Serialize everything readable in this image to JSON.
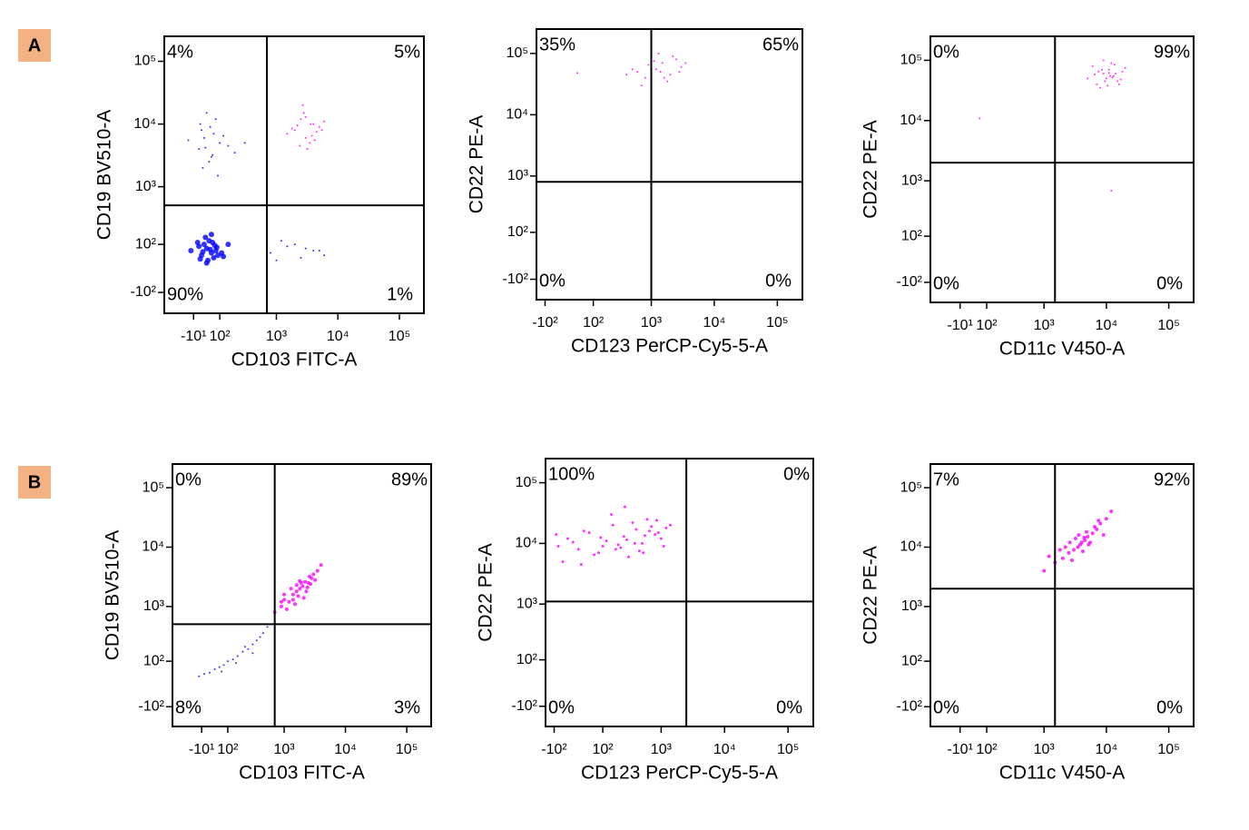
{
  "panel_labels": [
    "A",
    "B"
  ],
  "chart_data": [
    {
      "type": "scatter",
      "scale": "biexponential",
      "x_label": "CD103 FITC-A",
      "y_label": "CD19 BV510-A",
      "xlim": [
        -150,
        250000
      ],
      "ylim": [
        -250,
        250000
      ],
      "xticks": [
        {
          "value": -10,
          "label": "-10¹"
        },
        {
          "value": 100,
          "label": "10²"
        },
        {
          "value": 1000,
          "label": "10³"
        },
        {
          "value": 10000,
          "label": "10⁴"
        },
        {
          "value": 100000,
          "label": "10⁵"
        }
      ],
      "yticks": [
        {
          "value": -100,
          "label": "-10²"
        },
        {
          "value": 100,
          "label": "10²"
        },
        {
          "value": 1000,
          "label": "10³"
        },
        {
          "value": 10000,
          "label": "10⁴"
        },
        {
          "value": 100000,
          "label": "10⁵"
        }
      ],
      "gate": {
        "x": 700,
        "y": 500
      },
      "quadrant_labels": [
        "4%",
        "5%",
        "90%",
        "1%"
      ],
      "series": [
        {
          "color": "#0000ff",
          "size": 6,
          "x": [
            20,
            40,
            60,
            80,
            30,
            50,
            70,
            10,
            90,
            45,
            65,
            25,
            55,
            35,
            75,
            110,
            15,
            85,
            40,
            60,
            150,
            -20,
            5,
            120
          ],
          "values": [
            50,
            80,
            60,
            70,
            100,
            120,
            40,
            90,
            50,
            30,
            110,
            65,
            75,
            140,
            95,
            60,
            35,
            85,
            20,
            160,
            100,
            70,
            110,
            45
          ]
        },
        {
          "color": "#0000ff",
          "size": 2,
          "x": [
            10,
            30,
            60,
            100,
            20,
            50,
            150,
            80,
            -30,
            40,
            200,
            70,
            25,
            120,
            55,
            90,
            35,
            300,
            15,
            65
          ],
          "values": [
            4000,
            6000,
            3000,
            5000,
            8000,
            2500,
            4500,
            12000,
            5500,
            15000,
            3500,
            7000,
            2000,
            6500,
            9000,
            1500,
            4200,
            5000,
            10000,
            3200
          ]
        },
        {
          "color": "#0000ff",
          "size": 2,
          "x": [
            800,
            1500,
            2500,
            4000,
            1200,
            3000,
            6000,
            2000,
            1000,
            5000
          ],
          "values": [
            60,
            90,
            40,
            70,
            120,
            80,
            50,
            100,
            30,
            70
          ]
        },
        {
          "color": "#ff00ff",
          "size": 2,
          "x": [
            2000,
            3000,
            4000,
            2500,
            3500,
            5000,
            1500,
            2800,
            4500,
            3200,
            6000,
            2200,
            3800,
            2700,
            1800,
            4200,
            3000,
            5500,
            2400,
            3600
          ],
          "values": [
            8000,
            6000,
            10000,
            12000,
            5000,
            9000,
            7000,
            15000,
            7500,
            4000,
            11000,
            9500,
            6500,
            20000,
            8500,
            5500,
            13000,
            8000,
            4500,
            10000
          ]
        }
      ]
    },
    {
      "type": "scatter",
      "scale": "biexponential",
      "x_label": "CD123 PerCP-Cy5-5-A",
      "y_label": "CD22 PE-A",
      "xlim": [
        -150,
        250000
      ],
      "ylim": [
        -250,
        250000
      ],
      "xticks": [
        {
          "value": -100,
          "label": "-10²"
        },
        {
          "value": 100,
          "label": "10²"
        },
        {
          "value": 1000,
          "label": "10³"
        },
        {
          "value": 10000,
          "label": "10⁴"
        },
        {
          "value": 100000,
          "label": "10⁵"
        }
      ],
      "yticks": [
        {
          "value": -100,
          "label": "-10²"
        },
        {
          "value": 100,
          "label": "10²"
        },
        {
          "value": 1000,
          "label": "10³"
        },
        {
          "value": 10000,
          "label": "10⁴"
        },
        {
          "value": 100000,
          "label": "10⁵"
        }
      ],
      "gate": {
        "x": 1000,
        "y": 800
      },
      "quadrant_labels": [
        "35%",
        "65%",
        "0%",
        "0%"
      ],
      "series": [
        {
          "color": "#ff00ff",
          "size": 2,
          "x": [
            600,
            1000,
            1500,
            2000,
            800,
            1200,
            2500,
            3000,
            1800,
            900,
            1400,
            700,
            2200,
            400,
            1100,
            1600,
            2800,
            500,
            1300,
            3500,
            30
          ],
          "values": [
            50000,
            60000,
            70000,
            45000,
            40000,
            55000,
            80000,
            60000,
            35000,
            65000,
            50000,
            30000,
            90000,
            45000,
            75000,
            40000,
            50000,
            55000,
            100000,
            70000,
            48000
          ]
        }
      ]
    },
    {
      "type": "scatter",
      "scale": "biexponential",
      "x_label": "CD11c V450-A",
      "y_label": "CD22 PE-A",
      "xlim": [
        -150,
        250000
      ],
      "ylim": [
        -250,
        250000
      ],
      "xticks": [
        {
          "value": -10,
          "label": "-10¹"
        },
        {
          "value": 100,
          "label": "10²"
        },
        {
          "value": 1000,
          "label": "10³"
        },
        {
          "value": 10000,
          "label": "10⁴"
        },
        {
          "value": 100000,
          "label": "10⁵"
        }
      ],
      "yticks": [
        {
          "value": -100,
          "label": "-10²"
        },
        {
          "value": 100,
          "label": "10²"
        },
        {
          "value": 1000,
          "label": "10³"
        },
        {
          "value": 10000,
          "label": "10⁴"
        },
        {
          "value": 100000,
          "label": "10⁵"
        }
      ],
      "gate": {
        "x": 1500,
        "y": 2000
      },
      "quadrant_labels": [
        "0%",
        "99%",
        "0%",
        "0%"
      ],
      "series": [
        {
          "color": "#ff00ff",
          "size": 2,
          "x": [
            5000,
            7000,
            9000,
            11000,
            13000,
            15000,
            18000,
            6000,
            8000,
            10000,
            12000,
            14000,
            16000,
            20000,
            7500,
            9500,
            11500,
            13500,
            8500,
            10500,
            12500,
            6500,
            17000,
            9000,
            11000,
            66,
            12000
          ],
          "values": [
            50000,
            40000,
            60000,
            70000,
            55000,
            45000,
            65000,
            80000,
            35000,
            50000,
            90000,
            60000,
            40000,
            75000,
            65000,
            45000,
            55000,
            85000,
            70000,
            38000,
            52000,
            58000,
            48000,
            100000,
            62000,
            10900,
            680
          ]
        }
      ]
    },
    {
      "type": "scatter",
      "scale": "biexponential",
      "x_label": "CD103 FITC-A",
      "y_label": "CD19 BV510-A",
      "xlim": [
        -150,
        250000
      ],
      "ylim": [
        -250,
        250000
      ],
      "xticks": [
        {
          "value": -10,
          "label": "-10¹"
        },
        {
          "value": 100,
          "label": "10²"
        },
        {
          "value": 1000,
          "label": "10³"
        },
        {
          "value": 10000,
          "label": "10⁴"
        },
        {
          "value": 100000,
          "label": "10⁵"
        }
      ],
      "yticks": [
        {
          "value": -100,
          "label": "-10²"
        },
        {
          "value": 100,
          "label": "10²"
        },
        {
          "value": 1000,
          "label": "10³"
        },
        {
          "value": 10000,
          "label": "10⁴"
        },
        {
          "value": 100000,
          "label": "10⁵"
        }
      ],
      "gate": {
        "x": 700,
        "y": 500
      },
      "quadrant_labels": [
        "0%",
        "89%",
        "8%",
        "3%"
      ],
      "series": [
        {
          "color": "#0000ff",
          "size": 2,
          "x": [
            -20,
            0,
            20,
            40,
            60,
            80,
            100,
            130,
            160,
            200,
            250,
            300,
            350,
            400,
            450,
            530,
            70,
            150,
            220,
            300
          ],
          "values": [
            30,
            40,
            45,
            60,
            70,
            80,
            100,
            110,
            130,
            160,
            180,
            220,
            260,
            300,
            350,
            450,
            50,
            90,
            200,
            150
          ]
        },
        {
          "color": "#ff00ff",
          "size": 4,
          "x": [
            700,
            900,
            1000,
            1200,
            1400,
            1600,
            1800,
            2000,
            2200,
            2500,
            2800,
            3000,
            3500,
            4000,
            1100,
            1300,
            1700,
            1900,
            2300,
            2600,
            1500,
            2100,
            900,
            3200,
            1600,
            2400,
            1000,
            2700,
            1800,
            1400
          ],
          "values": [
            800,
            1000,
            1300,
            1200,
            1600,
            1800,
            2000,
            2200,
            2600,
            2500,
            3000,
            3500,
            4000,
            5000,
            900,
            2000,
            1500,
            2500,
            1800,
            3200,
            1100,
            1400,
            1200,
            2800,
            2300,
            2100,
            1600,
            2400,
            2700,
            1300
          ]
        }
      ]
    },
    {
      "type": "scatter",
      "scale": "biexponential",
      "x_label": "CD123  PerCP-Cy5-5-A",
      "y_label": "CD22 PE-A",
      "xlim": [
        -150,
        250000
      ],
      "ylim": [
        -250,
        250000
      ],
      "xticks": [
        {
          "value": -100,
          "label": "-10²"
        },
        {
          "value": 100,
          "label": "10²"
        },
        {
          "value": 1000,
          "label": "10³"
        },
        {
          "value": 10000,
          "label": "10⁴"
        },
        {
          "value": 100000,
          "label": "10⁵"
        }
      ],
      "yticks": [
        {
          "value": -100,
          "label": "-10²"
        },
        {
          "value": 100,
          "label": "10²"
        },
        {
          "value": 1000,
          "label": "10³"
        },
        {
          "value": 10000,
          "label": "10⁴"
        },
        {
          "value": 100000,
          "label": "10⁵"
        }
      ],
      "gate": {
        "x": 2500,
        "y": 1100
      },
      "quadrant_labels": [
        "100%",
        "0%",
        "0%",
        "0%"
      ],
      "series": [
        {
          "color": "#ff00ff",
          "size": 3,
          "x": [
            -80,
            -40,
            0,
            40,
            80,
            120,
            160,
            200,
            250,
            300,
            400,
            500,
            600,
            800,
            1000,
            1200,
            -60,
            -20,
            20,
            60,
            100,
            150,
            220,
            280,
            350,
            450,
            550,
            700,
            900,
            1100,
            -90,
            10,
            90,
            180,
            260,
            380,
            520,
            650,
            850,
            1400
          ],
          "values": [
            9000,
            12000,
            8000,
            15000,
            7000,
            11000,
            20000,
            9500,
            13000,
            6000,
            17000,
            10000,
            25000,
            14000,
            12000,
            18000,
            5000,
            10500,
            16000,
            6500,
            9000,
            30000,
            8500,
            11500,
            22000,
            7500,
            13500,
            19000,
            15000,
            9000,
            14000,
            4500,
            12500,
            8000,
            40000,
            10000,
            7000,
            16000,
            24000,
            20000
          ]
        }
      ]
    },
    {
      "type": "scatter",
      "scale": "biexponential",
      "x_label": "CD11c V450-A",
      "y_label": "CD22 PE-A",
      "xlim": [
        -150,
        250000
      ],
      "ylim": [
        -250,
        250000
      ],
      "xticks": [
        {
          "value": -10,
          "label": "-10¹"
        },
        {
          "value": 100,
          "label": "10²"
        },
        {
          "value": 1000,
          "label": "10³"
        },
        {
          "value": 10000,
          "label": "10⁴"
        },
        {
          "value": 100000,
          "label": "10⁵"
        }
      ],
      "yticks": [
        {
          "value": -100,
          "label": "-10²"
        },
        {
          "value": 100,
          "label": "10²"
        },
        {
          "value": 1000,
          "label": "10³"
        },
        {
          "value": 10000,
          "label": "10⁴"
        },
        {
          "value": 100000,
          "label": "10⁵"
        }
      ],
      "gate": {
        "x": 1500,
        "y": 2000
      },
      "quadrant_labels": [
        "7%",
        "92%",
        "0%",
        "0%"
      ],
      "series": [
        {
          "color": "#ff00ff",
          "size": 4,
          "x": [
            1000,
            1500,
            2000,
            2500,
            3000,
            3500,
            4000,
            4500,
            5000,
            6000,
            7000,
            8000,
            10000,
            12000,
            1800,
            2800,
            3200,
            3800,
            4200,
            5500,
            6500,
            2200,
            4800,
            9000,
            1200,
            3600,
            5200,
            7500,
            2600,
            4400
          ],
          "values": [
            4000,
            5500,
            6500,
            8000,
            9000,
            10000,
            12000,
            13000,
            15000,
            17000,
            20000,
            25000,
            30000,
            40000,
            9000,
            6000,
            14000,
            11000,
            8500,
            12000,
            22000,
            10000,
            18000,
            16000,
            7000,
            16000,
            11000,
            28000,
            12000,
            14500
          ]
        }
      ]
    }
  ]
}
